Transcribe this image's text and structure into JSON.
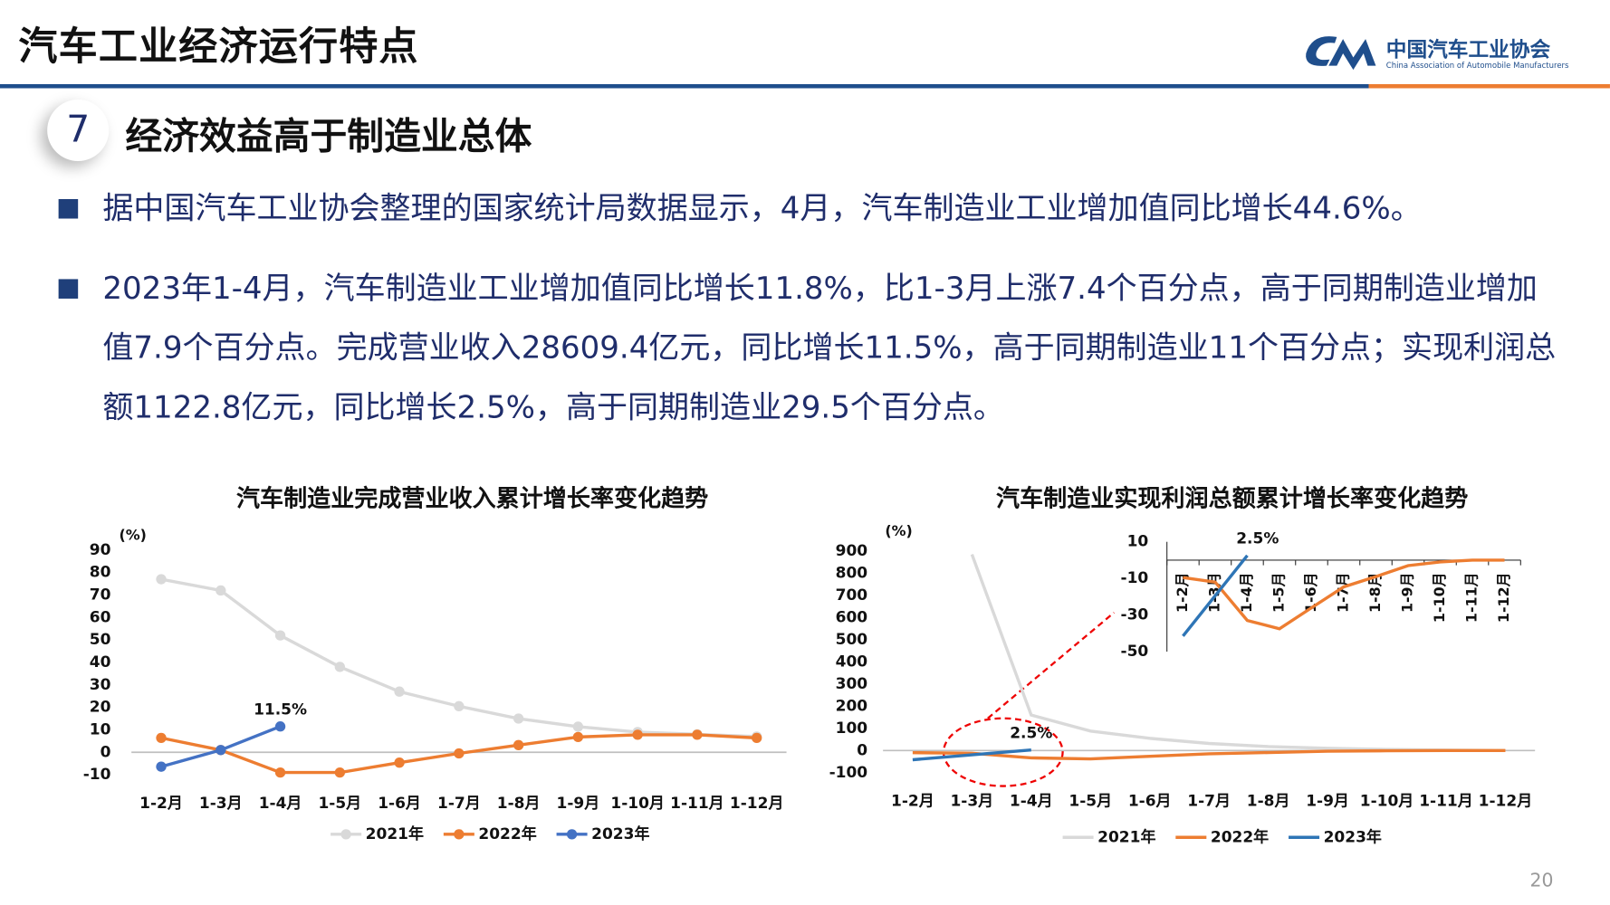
{
  "header": {
    "title": "汽车工业经济运行特点",
    "logo_name": "中国汽车工业协会",
    "logo_subtitle": "China Association of Automobile Manufacturers"
  },
  "section": {
    "number": 7,
    "title": "经济效益高于制造业总体"
  },
  "bullets": [
    "据中国汽车工业协会整理的国家统计局数据显示，4月，汽车制造业工业增加值同比增长44.6%。",
    "2023年1-4月，汽车制造业工业增加值同比增长11.8%，比1-3月上涨7.4个百分点，高于同期制造业增加值7.9个百分点。完成营业收入28609.4亿元，同比增长11.5%，高于同期制造业11个百分点；实现利润总额1122.8亿元，同比增长2.5%，高于同期制造业29.5个百分点。"
  ],
  "page_number": 20,
  "chart_data": [
    {
      "type": "line",
      "title": "汽车制造业完成营业收入累计增长率变化趋势",
      "y_label": "(%)",
      "markers": true,
      "categories": [
        "1-2月",
        "1-3月",
        "1-4月",
        "1-5月",
        "1-6月",
        "1-7月",
        "1-8月",
        "1-9月",
        "1-10月",
        "1-11月",
        "1-12月"
      ],
      "ylim": [
        -10,
        90
      ],
      "yticks": [
        -10,
        0,
        10,
        20,
        30,
        40,
        50,
        60,
        70,
        80,
        90
      ],
      "series": [
        {
          "name": "2021年",
          "color": "#d9d9d9",
          "values": [
            77,
            72,
            52,
            38,
            27,
            20.5,
            15,
            11.4,
            9,
            8,
            7
          ]
        },
        {
          "name": "2022年",
          "color": "#ed7d31",
          "values": [
            6.4,
            1,
            -9,
            -9,
            -4.6,
            -0.5,
            3.2,
            6.8,
            7.8,
            7.8,
            6.4
          ]
        },
        {
          "name": "2023年",
          "color": "#4472c4",
          "values": [
            -6.4,
            1,
            11.5,
            null,
            null,
            null,
            null,
            null,
            null,
            null,
            null
          ],
          "value_labels": [
            null,
            null,
            "11.5%",
            null,
            null,
            null,
            null,
            null,
            null,
            null,
            null
          ]
        }
      ]
    },
    {
      "type": "line",
      "title": "汽车制造业实现利润总额累计增长率变化趋势",
      "y_label": "(%)",
      "markers": false,
      "categories": [
        "1-2月",
        "1-3月",
        "1-4月",
        "1-5月",
        "1-6月",
        "1-7月",
        "1-8月",
        "1-9月",
        "1-10月",
        "1-11月",
        "1-12月"
      ],
      "ylim": [
        -100,
        900
      ],
      "yticks": [
        -100,
        0,
        100,
        200,
        300,
        400,
        500,
        600,
        700,
        800,
        900
      ],
      "inset": {
        "ylim": [
          -50,
          10
        ],
        "yticks": [
          10,
          -10,
          -30,
          -50
        ]
      },
      "series": [
        {
          "name": "2021年",
          "color": "#d9d9d9",
          "values": [
            null,
            885,
            160,
            88,
            55,
            32,
            18,
            10,
            5,
            2,
            0
          ]
        },
        {
          "name": "2022年",
          "color": "#ed7d31",
          "values": [
            -9.5,
            -12,
            -33,
            -37.5,
            -26,
            -14.6,
            -9,
            -3,
            -1,
            0,
            0
          ]
        },
        {
          "name": "2023年",
          "color": "#2e75b6",
          "values": [
            -41.5,
            -19.5,
            2.5,
            null,
            null,
            null,
            null,
            null,
            null,
            null,
            null
          ],
          "value_labels": [
            null,
            null,
            "2.5%",
            null,
            null,
            null,
            null,
            null,
            null,
            null,
            null
          ]
        }
      ]
    }
  ]
}
